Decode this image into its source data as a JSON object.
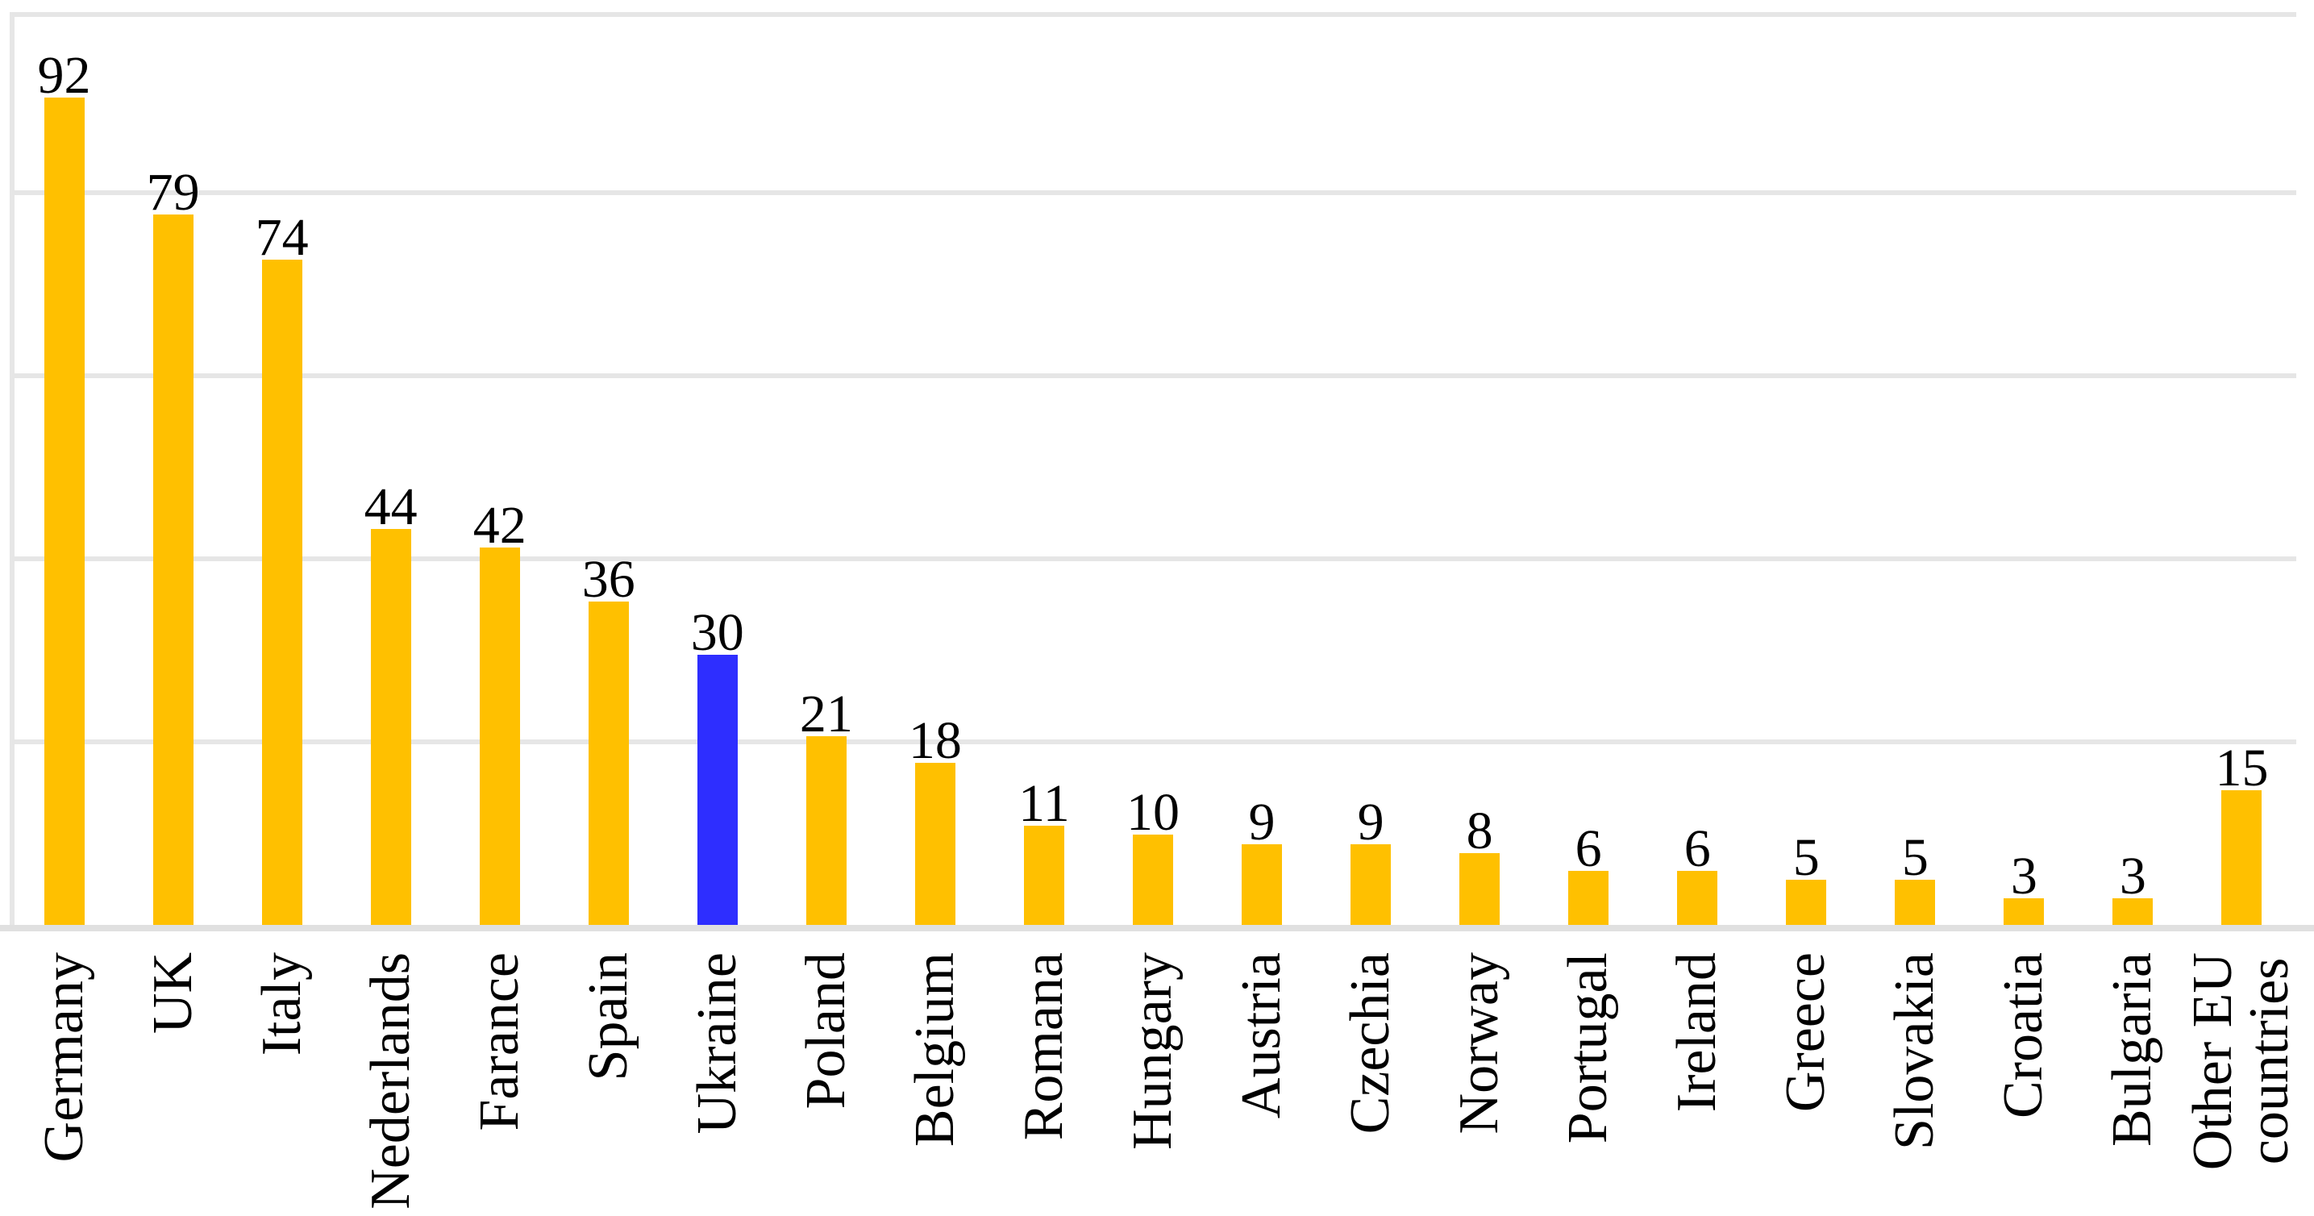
{
  "chart_data": {
    "type": "bar",
    "title": "",
    "xlabel": "",
    "ylabel": "",
    "categories": [
      "Germany",
      "UK",
      "Italy",
      "Nederlands",
      "Farance",
      "Spain",
      "Ukraine",
      "Poland",
      "Belgium",
      "Romana",
      "Hungary",
      "Austria",
      "Czechia",
      "Norway",
      "Portugal",
      "Ireland",
      "Greece",
      "Slovakia",
      "Croatia",
      "Bulgaria",
      "Other EU\ncountries"
    ],
    "values": [
      92,
      79,
      74,
      44,
      42,
      36,
      30,
      21,
      18,
      11,
      10,
      9,
      9,
      8,
      6,
      6,
      5,
      5,
      3,
      3,
      15
    ],
    "data_labels": [
      92,
      79,
      74,
      44,
      42,
      36,
      30,
      21,
      18,
      11,
      10,
      9,
      9,
      8,
      6,
      6,
      5,
      5,
      3,
      3,
      15
    ],
    "ylim": [
      0,
      101
    ],
    "gridline_values": [
      20,
      40,
      60,
      80
    ],
    "grid": "horizontal",
    "legend_position": "none",
    "tick_labels_y": "none",
    "highlight": {
      "category": "Ukraine",
      "index": 6
    },
    "colors": {
      "bar_default": "#FFC000",
      "bar_highlight": "#2E2EFF",
      "gridline": "#E6E6E6",
      "axis_line": "#E0E0E0",
      "text": "#000000",
      "background": "#FFFFFF"
    }
  }
}
